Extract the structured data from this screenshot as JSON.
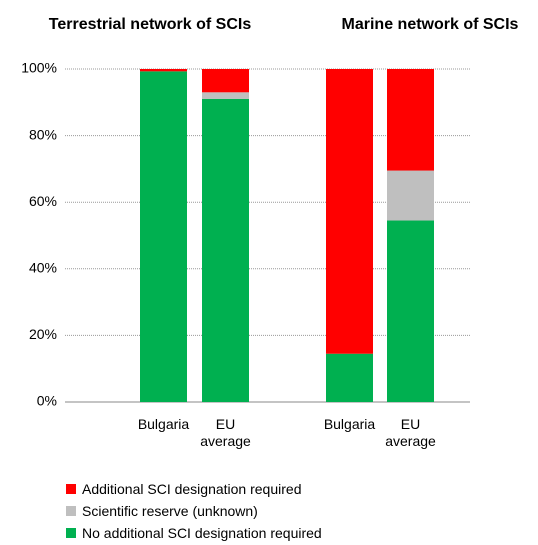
{
  "chart_data": {
    "type": "stacked_bar",
    "annotations": [
      "Terrestrial network of SCIs",
      "Marine network of SCIs"
    ],
    "categories": [
      "Bulgaria",
      "EU average",
      "Bulgaria",
      "EU average"
    ],
    "series": [
      {
        "name": "No additional SCI designation required",
        "color": "#00b050",
        "values": [
          99.3,
          91,
          14.5,
          54.5
        ]
      },
      {
        "name": "Scientific reserve (unknown)",
        "color": "#bfbfbf",
        "values": [
          0,
          2,
          0,
          15
        ]
      },
      {
        "name": "Additional SCI designation required",
        "color": "#ff0000",
        "values": [
          0.7,
          7,
          85.5,
          30.5
        ]
      }
    ],
    "ylim": [
      0,
      100
    ],
    "yticks": [
      {
        "value": 0,
        "label": "0%"
      },
      {
        "value": 20,
        "label": "20%"
      },
      {
        "value": 40,
        "label": "40%"
      },
      {
        "value": 60,
        "label": "60%"
      },
      {
        "value": 80,
        "label": "80%"
      },
      {
        "value": 100,
        "label": "100%"
      }
    ],
    "grid": true
  }
}
